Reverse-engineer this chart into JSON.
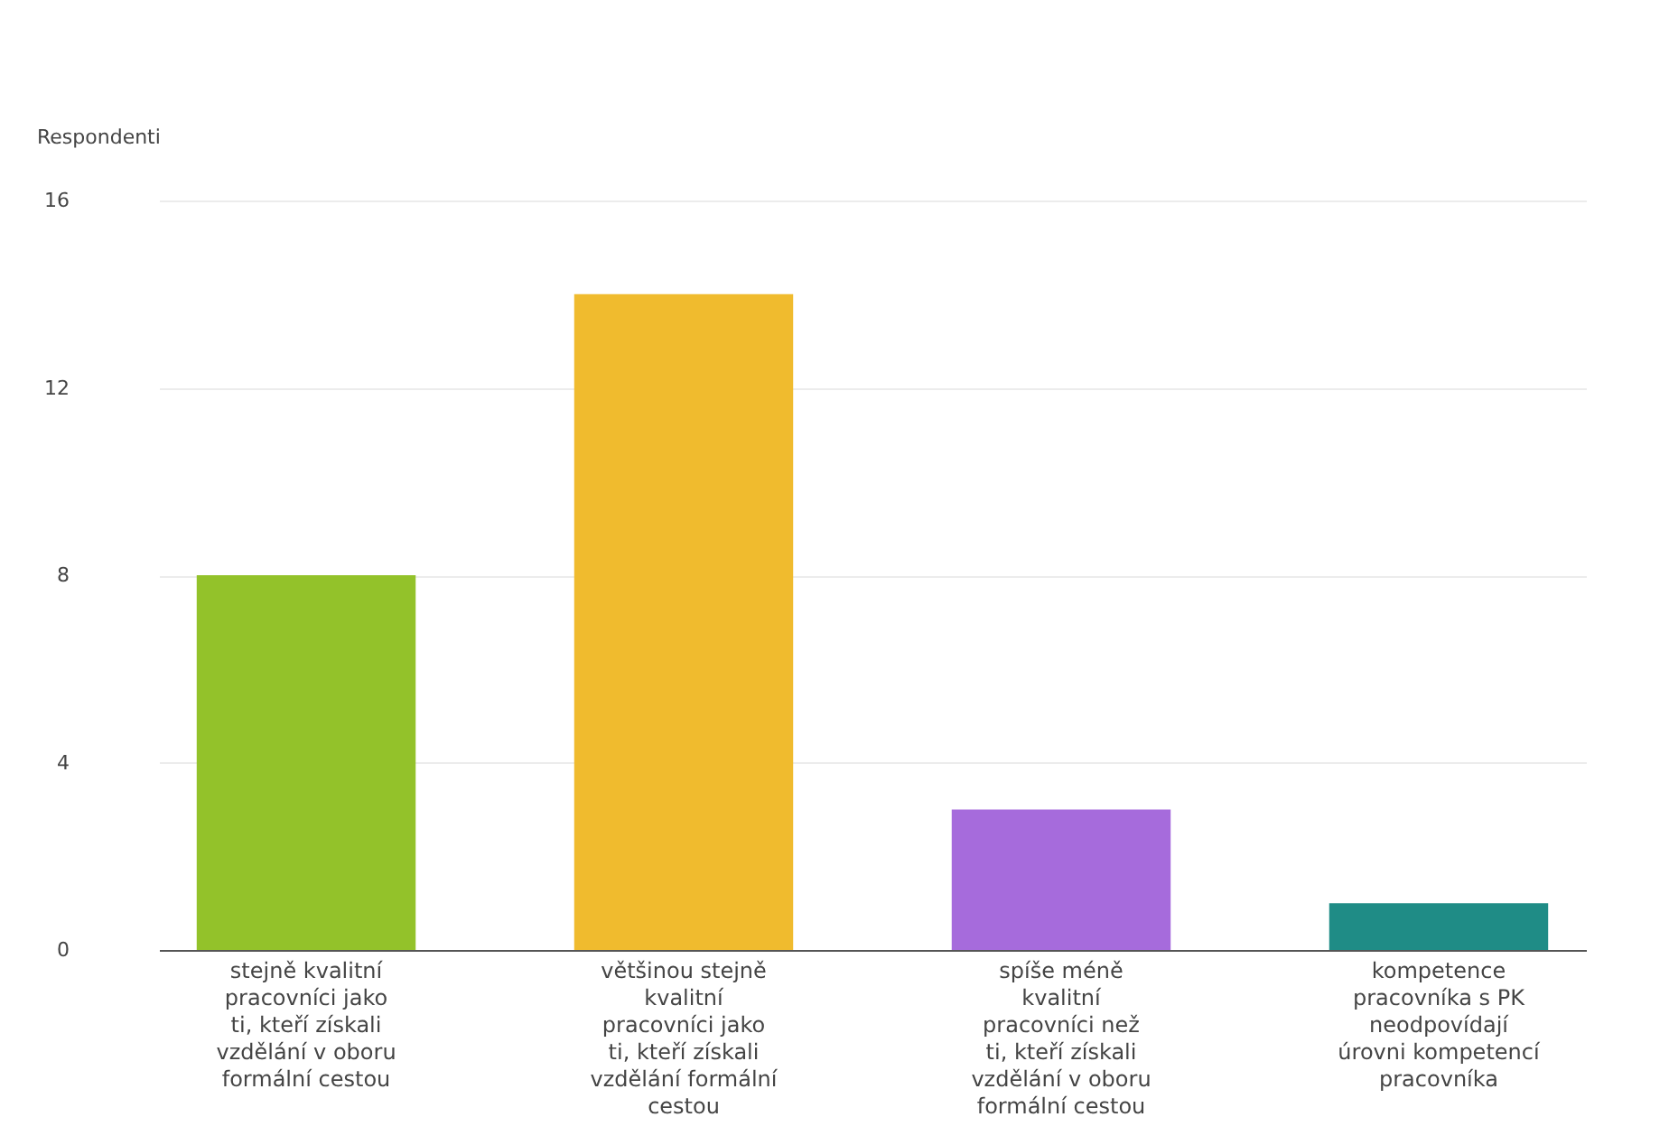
{
  "chart_data": {
    "type": "bar",
    "ylabel": "Respondenti",
    "categories": [
      "stejně kvalitní pracovníci jako ti, kteří získali vzdělání v oboru formální cestou",
      "většinou stejně kvalitní pracovníci jako ti, kteří získali vzdělání formální cestou",
      "spíše méně kvalitní pracovníci než ti, kteří získali vzdělání v oboru formální cestou",
      "kompetence pracovníka s PK neodpovídají úrovni kompetencí pracovníka"
    ],
    "values": [
      8,
      14,
      3,
      1
    ],
    "colors": [
      "#93c22a",
      "#f0bb2e",
      "#a66bdc",
      "#1f8c86"
    ],
    "ylim": [
      0,
      16
    ],
    "yticks": [
      0,
      4,
      8,
      12,
      16
    ],
    "grid": "y",
    "legend": false
  }
}
